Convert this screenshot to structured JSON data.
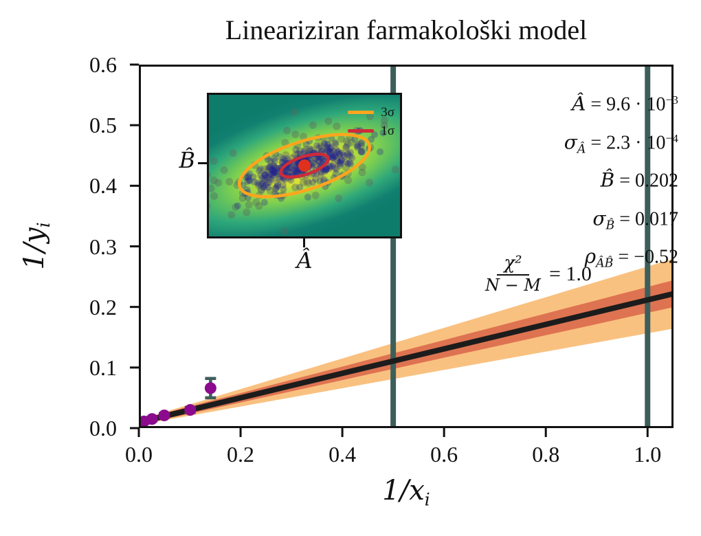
{
  "title": "Lineariziran farmakološki model",
  "colors": {
    "band_3sigma": "#F9C180",
    "band_1sigma": "#DE7351",
    "fit_line": "#1C1C1C",
    "vline": "#3D5F5C",
    "data_point": "#8B0A8E",
    "error_bar": "#3D5F5C",
    "spine": "#111111",
    "ellipse_3sigma": "#FFA51E",
    "ellipse_1sigma": "#CE2B39",
    "center_dot": "#E0301E",
    "scatter_gray": "rgba(90,105,95,0.40)",
    "scatter_blue": "rgba(30,30,150,0.30)"
  },
  "axes": {
    "xlabel_base": "1/x",
    "xlabel_sub": "i",
    "ylabel_base": "1/y",
    "ylabel_sub": "i",
    "xtick_labels": [
      "0.0",
      "0.2",
      "0.4",
      "0.6",
      "0.8",
      "1.0"
    ],
    "ytick_labels": [
      "0.0",
      "0.1",
      "0.2",
      "0.3",
      "0.4",
      "0.5",
      "0.6"
    ]
  },
  "annotations": {
    "lines": [
      {
        "pre": "Â",
        "sub": "",
        "mid": " = 9.6 · 10",
        "sup": "−3"
      },
      {
        "pre": "σ",
        "sub": "Â",
        "mid": " = 2.3 · 10",
        "sup": "−4"
      },
      {
        "pre": "B̂",
        "sub": "",
        "mid": " = 0.202",
        "sup": ""
      },
      {
        "pre": "σ",
        "sub": "B̂",
        "mid": " = 0.017",
        "sup": ""
      },
      {
        "pre": "ρ",
        "sub": "ÂB̂",
        "mid": " = −0.52",
        "sup": ""
      }
    ],
    "chi2": {
      "numerator": "χ²",
      "denominator": "N − M",
      "rhs": "= 1.0"
    }
  },
  "inset": {
    "xlabel": "Â",
    "ylabel": "B̂",
    "legend": [
      {
        "label": "3σ"
      },
      {
        "label": "1σ"
      }
    ]
  },
  "chart_data": [
    {
      "type": "scatter",
      "title": "Lineariziran farmakološki model",
      "xlabel": "1/x_i",
      "ylabel": "1/y_i",
      "xlim": [
        0,
        1.051
      ],
      "ylim": [
        0,
        0.6
      ],
      "xticks": [
        0,
        0.2,
        0.4,
        0.6,
        0.8,
        1.0
      ],
      "yticks": [
        0,
        0.1,
        0.2,
        0.3,
        0.4,
        0.5,
        0.6
      ],
      "grid": false,
      "fit": {
        "A_intercept": 0.0096,
        "B_slope": 0.202,
        "sigma_A": 0.00023,
        "sigma_B": 0.017,
        "rho_AB": -0.52,
        "chi2_over_dof": 1.0
      },
      "bands": [
        "1sigma",
        "3sigma"
      ],
      "vlines": [
        0.5,
        1.0
      ],
      "points": {
        "x": [
          0.01,
          0.026,
          0.05,
          0.101,
          0.141
        ],
        "y": [
          0.011,
          0.015,
          0.021,
          0.03,
          0.066
        ],
        "yerr": [
          0.003,
          0.003,
          0.003,
          0.004,
          0.016
        ]
      }
    },
    {
      "type": "scatter",
      "description": "inset: bootstrap distribution of fitted parameters over likelihood density with 1σ and 3σ confidence ellipses",
      "xlabel": "Â",
      "ylabel": "B̂",
      "legend_entries": [
        "3σ",
        "1σ"
      ],
      "ellipse_angle_deg": -18,
      "scatter_config": {
        "seed": 7,
        "n_gray": 140,
        "n_blue": 270,
        "gray_sd": [
          66,
          25
        ],
        "blue_sd": [
          43,
          14
        ],
        "center": [
          139,
          103
        ],
        "r3": [
          99,
          35
        ],
        "r1": [
          36,
          13
        ],
        "dot_r": 9
      }
    }
  ]
}
